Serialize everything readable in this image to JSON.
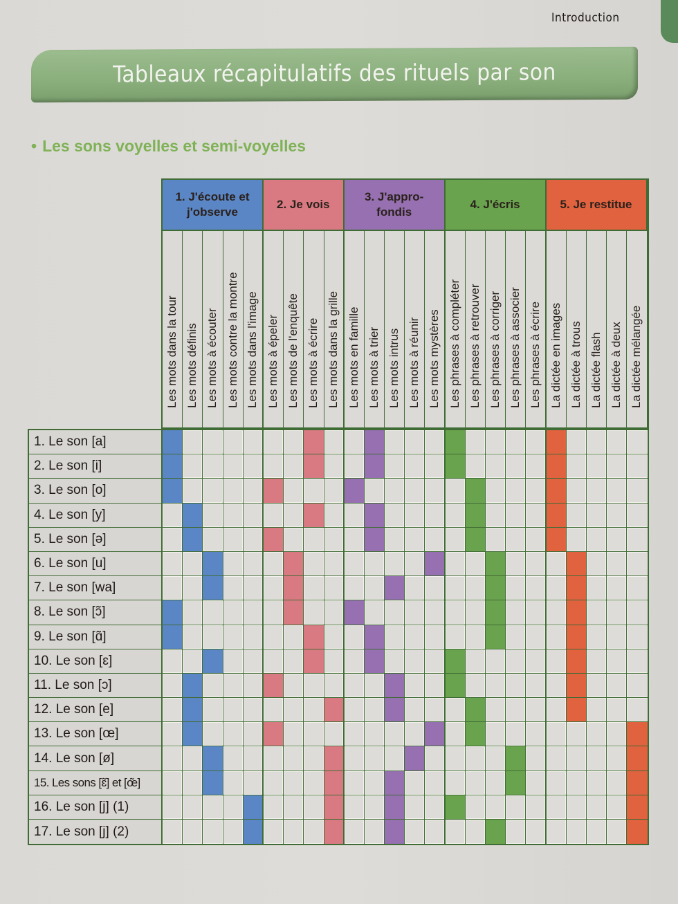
{
  "page": {
    "running_head": "Introduction",
    "title": "Tableaux récapitulatifs des rituels par son",
    "section_bullet": "•",
    "section_heading": "Les sons voyelles et semi-voyelles"
  },
  "colors": {
    "blue": "#5b86c6",
    "pink": "#d97a82",
    "purple": "#9670b0",
    "green": "#6aa34e",
    "red": "#e0623f",
    "grid_line": "#3f6b35",
    "title_band": "#8aae7c",
    "heading_green": "#7fb256"
  },
  "groups": [
    {
      "label": "1. J'écoute et j'observe",
      "color": "#5b86c6",
      "span": 5
    },
    {
      "label": "2. Je vois",
      "color": "#d97a82",
      "span": 4
    },
    {
      "label": "3. J'appro-fondis",
      "color": "#9670b0",
      "span": 5
    },
    {
      "label": "4. J'écris",
      "color": "#6aa34e",
      "span": 5
    },
    {
      "label": "5. Je restitue",
      "color": "#e0623f",
      "span": 5
    }
  ],
  "columns": [
    "Les mots dans la tour",
    "Les mots définis",
    "Les mots à écouter",
    "Les mots contre la montre",
    "Les mots dans l'image",
    "Les mots à épeler",
    "Les mots de l'enquête",
    "Les mots à écrire",
    "Les mots dans la grille",
    "Les mots en famille",
    "Les mots à trier",
    "Les mots intrus",
    "Les mots à réunir",
    "Les mots mystères",
    "Les phrases à compléter",
    "Les phrases à retrouver",
    "Les phrases à corriger",
    "Les phrases à associer",
    "Les phrases à écrire",
    "La dictée en images",
    "La dictée à trous",
    "La dictée flash",
    "La dictée à deux",
    "La dictée mélangée"
  ],
  "rows": [
    {
      "label": "1. Le son [a]",
      "filled": [
        1,
        8,
        11,
        15,
        20
      ]
    },
    {
      "label": "2. Le son [i]",
      "filled": [
        1,
        8,
        11,
        15,
        20
      ]
    },
    {
      "label": "3. Le son [o]",
      "filled": [
        1,
        6,
        10,
        16,
        20
      ]
    },
    {
      "label": "4. Le son [y]",
      "filled": [
        2,
        8,
        11,
        16,
        20
      ]
    },
    {
      "label": "5. Le son [ə]",
      "filled": [
        2,
        6,
        11,
        16,
        20
      ]
    },
    {
      "label": "6. Le son [u]",
      "filled": [
        3,
        7,
        14,
        17,
        21
      ]
    },
    {
      "label": "7. Le son [wa]",
      "filled": [
        3,
        7,
        12,
        17,
        21
      ]
    },
    {
      "label": "8. Le son [ɔ̃]",
      "filled": [
        1,
        7,
        10,
        17,
        21
      ]
    },
    {
      "label": "9. Le son [ɑ̃]",
      "filled": [
        1,
        8,
        11,
        17,
        21
      ]
    },
    {
      "label": "10. Le son [ɛ]",
      "filled": [
        3,
        8,
        11,
        15,
        21
      ]
    },
    {
      "label": "11. Le son [ɔ]",
      "filled": [
        2,
        6,
        12,
        15,
        21
      ]
    },
    {
      "label": "12. Le son [e]",
      "filled": [
        2,
        9,
        12,
        16,
        21
      ]
    },
    {
      "label": "13. Le son [œ]",
      "filled": [
        2,
        6,
        14,
        16,
        24
      ]
    },
    {
      "label": "14. Le son [ø]",
      "filled": [
        3,
        9,
        13,
        18,
        24
      ]
    },
    {
      "label": "15. Les sons [ɛ̃] et [œ̃]",
      "filled": [
        3,
        9,
        12,
        18,
        24
      ]
    },
    {
      "label": "16. Le son [j] (1)",
      "filled": [
        5,
        9,
        12,
        15,
        24
      ]
    },
    {
      "label": "17. Le son [j] (2)",
      "filled": [
        5,
        9,
        12,
        17,
        24
      ]
    }
  ]
}
